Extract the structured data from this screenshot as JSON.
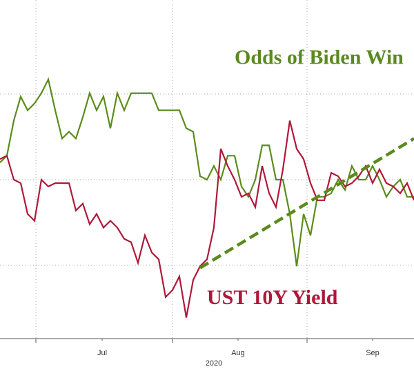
{
  "chart_data": {
    "type": "line",
    "xlabel": "2020",
    "annotations": [
      {
        "text": "Odds of Biden Win",
        "x": 34,
        "y": 335,
        "color": "#5a8a1e"
      },
      {
        "text": "UST 10Y Yield",
        "x": 30,
        "y": 55,
        "color": "#b0173a"
      }
    ],
    "x": [
      0,
      1,
      2,
      3,
      4,
      5,
      6,
      7,
      8,
      9,
      10,
      11,
      12,
      13,
      14,
      15,
      16,
      17,
      18,
      19,
      20,
      21,
      22,
      23,
      24,
      25,
      26,
      27,
      28,
      29,
      30,
      31,
      32,
      33,
      34,
      35,
      36,
      37,
      38,
      39,
      40,
      41,
      42,
      43,
      44,
      45,
      46,
      47,
      48,
      49,
      50,
      51,
      52,
      53,
      54,
      55,
      56,
      57,
      58,
      59,
      60
    ],
    "series": [
      {
        "name": "Odds of Biden Win",
        "color": "#5b8c1a",
        "values": [
          220,
          228,
          269,
          297,
          281,
          289,
          301,
          317,
          281,
          248,
          256,
          248,
          273,
          301,
          281,
          297,
          260,
          301,
          281,
          301,
          301,
          301,
          301,
          281,
          281,
          281,
          281,
          260,
          256,
          204,
          200,
          216,
          200,
          228,
          228,
          192,
          180,
          200,
          240,
          240,
          200,
          200,
          160,
          99,
          160,
          135,
          180,
          180,
          184,
          200,
          188,
          216,
          200,
          200,
          216,
          200,
          180,
          192,
          200,
          180,
          180
        ]
      },
      {
        "name": "UST 10Y Yield",
        "color": "#b0173a",
        "values": [
          224,
          228,
          200,
          196,
          160,
          152,
          200,
          192,
          196,
          196,
          196,
          164,
          172,
          148,
          160,
          144,
          152,
          144,
          131,
          127,
          103,
          135,
          115,
          107,
          63,
          71,
          87,
          39,
          83,
          99,
          107,
          144,
          236,
          216,
          200,
          180,
          184,
          168,
          216,
          184,
          168,
          212,
          269,
          236,
          224,
          196,
          176,
          176,
          208,
          204,
          192,
          196,
          204,
          216,
          196,
          212,
          196,
          192,
          184,
          196,
          176
        ]
      }
    ],
    "trendline": {
      "x": [
        29,
        60
      ],
      "values": [
        97,
        248
      ],
      "color": "#5a8a1e"
    },
    "xlim": [
      0,
      60
    ],
    "ylim": [
      14.5,
      409.7
    ],
    "yticks": [
      100,
      200,
      300
    ],
    "xticks": [
      {
        "value": 14.8,
        "label": "Jul"
      },
      {
        "value": 34.5,
        "label": "Aug"
      },
      {
        "value": 54,
        "label": "Sep"
      }
    ],
    "xgrid": [
      5.2,
      25,
      44.5
    ],
    "grid": true,
    "legend": false
  }
}
